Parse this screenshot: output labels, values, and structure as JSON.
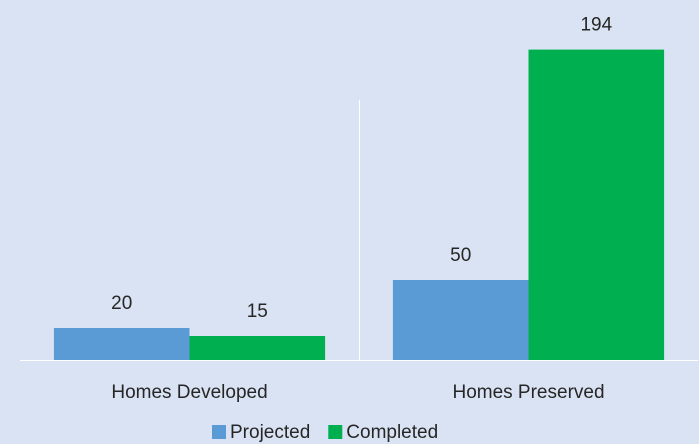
{
  "chart_data": {
    "type": "bar",
    "categories": [
      "Homes Developed",
      "Homes Preserved"
    ],
    "series": [
      {
        "name": "Projected",
        "color": "#5b9bd5",
        "values": [
          20,
          50
        ]
      },
      {
        "name": "Completed",
        "color": "#00b050",
        "values": [
          15,
          194
        ]
      }
    ],
    "ylim": [
      0,
      200
    ]
  }
}
